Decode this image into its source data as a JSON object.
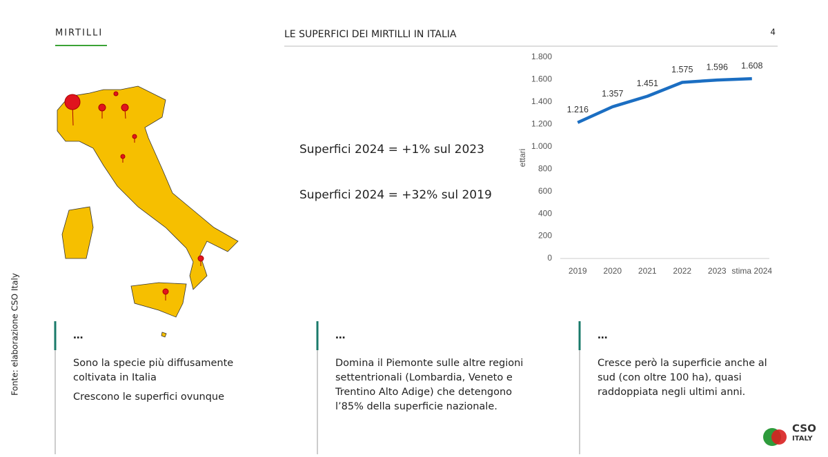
{
  "header": {
    "section": "MIRTILLI",
    "title": "LE SUPERFICI DEI MIRTILLI IN ITALIA",
    "page": "4"
  },
  "statements": [
    "Superfici 2024 = +1% sul 2023",
    "Superfici 2024 = +32% sul 2019"
  ],
  "chart_data": {
    "type": "line",
    "y_label": "ettari",
    "categories": [
      "2019",
      "2020",
      "2021",
      "2022",
      "2023",
      "stima 2024"
    ],
    "series": [
      {
        "name": "ettari",
        "color": "#1b6ec2",
        "values": [
          1216,
          1357,
          1451,
          1575,
          1596,
          1608
        ],
        "value_labels": [
          "1.216",
          "1.357",
          "1.451",
          "1.575",
          "1.596",
          "1.608"
        ]
      }
    ],
    "ylim": [
      0,
      1800
    ],
    "yticks": [
      0,
      200,
      400,
      600,
      800,
      {
        "value": 1000,
        "label": "1.000"
      },
      {
        "value": 1200,
        "label": "1.200"
      },
      {
        "value": 1400,
        "label": "1.400"
      },
      {
        "value": 1600,
        "label": "1.600"
      },
      {
        "value": 1800,
        "label": "1.800"
      }
    ],
    "grid": false
  },
  "columns": [
    {
      "heading": "…",
      "lines": [
        "Sono la specie più diffusamente",
        "coltivata in Italia",
        "Crescono le superfici ovunque"
      ]
    },
    {
      "heading": "…",
      "lines": [
        "Domina il Piemonte sulle altre regioni",
        "settentrionali (Lombardia, Veneto e",
        "Trentino Alto Adige) che detengono",
        "l’85% della superficie nazionale."
      ]
    },
    {
      "heading": "…",
      "lines": [
        "Cresce però la superficie anche al",
        "sud (con oltre 100 ha), quasi",
        "raddoppiata negli ultimi anni."
      ]
    }
  ],
  "source": "Fonte: elaborazione CSO Italy",
  "logo": {
    "name": "CSO",
    "sub": "ITALY"
  }
}
